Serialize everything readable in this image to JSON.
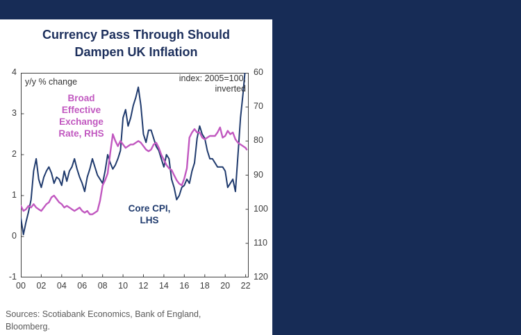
{
  "page": {
    "band_color": "#172c56",
    "panel_color": "#ffffff"
  },
  "title": {
    "line1": "Currency Pass Through Should",
    "line2": "Dampen UK Inflation"
  },
  "annotations": {
    "left_axis_note": "y/y % change",
    "right_axis_note_line1": "index: 2005=100,",
    "right_axis_note_line2": "inverted",
    "fx_label_lines": [
      "Broad",
      "Effective",
      "Exchange",
      "Rate, RHS"
    ],
    "cpi_label_line1": "Core CPI,",
    "cpi_label_line2": "LHS"
  },
  "footer": {
    "line1": "Sources: Scotiabank Economics, Bank of England,",
    "line2": "Bloomberg."
  },
  "chart_data": {
    "type": "line",
    "title": "Currency Pass Through Should Dampen UK Inflation",
    "x_axis": {
      "range": [
        2000,
        2022.3
      ],
      "tick_years": [
        2000,
        2002,
        2004,
        2006,
        2008,
        2010,
        2012,
        2014,
        2016,
        2018,
        2020,
        2022
      ],
      "tick_labels": [
        "00",
        "02",
        "04",
        "06",
        "08",
        "10",
        "12",
        "14",
        "16",
        "18",
        "20",
        "22"
      ]
    },
    "left_axis": {
      "label": "y/y % change",
      "range": [
        -1,
        4
      ],
      "ticks": [
        4,
        3,
        2,
        1,
        0,
        -1
      ]
    },
    "right_axis": {
      "label": "index: 2005=100, inverted",
      "range": [
        60,
        120
      ],
      "ticks": [
        60,
        70,
        80,
        90,
        100,
        110,
        120
      ],
      "inverted": true
    },
    "grid": false,
    "legend_position": "in-plot annotations",
    "series": [
      {
        "name": "Core CPI, LHS",
        "axis": "left",
        "color": "#1f3a6d",
        "points": [
          [
            2000,
            0.45
          ],
          [
            2000.25,
            0.05
          ],
          [
            2000.5,
            0.35
          ],
          [
            2000.75,
            0.6
          ],
          [
            2001,
            0.9
          ],
          [
            2001.25,
            1.6
          ],
          [
            2001.5,
            1.9
          ],
          [
            2001.75,
            1.4
          ],
          [
            2002,
            1.2
          ],
          [
            2002.25,
            1.45
          ],
          [
            2002.5,
            1.6
          ],
          [
            2002.75,
            1.7
          ],
          [
            2003,
            1.55
          ],
          [
            2003.25,
            1.3
          ],
          [
            2003.5,
            1.45
          ],
          [
            2003.75,
            1.4
          ],
          [
            2004,
            1.25
          ],
          [
            2004.25,
            1.6
          ],
          [
            2004.5,
            1.35
          ],
          [
            2004.75,
            1.6
          ],
          [
            2005,
            1.7
          ],
          [
            2005.25,
            1.9
          ],
          [
            2005.5,
            1.65
          ],
          [
            2005.75,
            1.45
          ],
          [
            2006,
            1.3
          ],
          [
            2006.25,
            1.1
          ],
          [
            2006.5,
            1.45
          ],
          [
            2006.75,
            1.65
          ],
          [
            2007,
            1.9
          ],
          [
            2007.25,
            1.7
          ],
          [
            2007.5,
            1.5
          ],
          [
            2007.75,
            1.4
          ],
          [
            2008,
            1.3
          ],
          [
            2008.25,
            1.6
          ],
          [
            2008.5,
            2.0
          ],
          [
            2008.75,
            1.8
          ],
          [
            2009,
            1.65
          ],
          [
            2009.25,
            1.75
          ],
          [
            2009.5,
            1.9
          ],
          [
            2009.75,
            2.1
          ],
          [
            2010,
            2.9
          ],
          [
            2010.25,
            3.1
          ],
          [
            2010.5,
            2.7
          ],
          [
            2010.75,
            2.9
          ],
          [
            2011,
            3.2
          ],
          [
            2011.25,
            3.4
          ],
          [
            2011.5,
            3.65
          ],
          [
            2011.75,
            3.2
          ],
          [
            2012,
            2.5
          ],
          [
            2012.25,
            2.3
          ],
          [
            2012.5,
            2.6
          ],
          [
            2012.75,
            2.6
          ],
          [
            2013,
            2.4
          ],
          [
            2013.25,
            2.2
          ],
          [
            2013.5,
            2.1
          ],
          [
            2013.75,
            1.9
          ],
          [
            2014,
            1.7
          ],
          [
            2014.25,
            2.0
          ],
          [
            2014.5,
            1.9
          ],
          [
            2014.75,
            1.4
          ],
          [
            2015,
            1.2
          ],
          [
            2015.25,
            0.9
          ],
          [
            2015.5,
            1.0
          ],
          [
            2015.75,
            1.2
          ],
          [
            2016,
            1.25
          ],
          [
            2016.25,
            1.4
          ],
          [
            2016.5,
            1.3
          ],
          [
            2016.75,
            1.6
          ],
          [
            2017,
            1.8
          ],
          [
            2017.25,
            2.4
          ],
          [
            2017.5,
            2.7
          ],
          [
            2017.75,
            2.5
          ],
          [
            2018,
            2.4
          ],
          [
            2018.25,
            2.1
          ],
          [
            2018.5,
            1.9
          ],
          [
            2018.75,
            1.9
          ],
          [
            2019,
            1.8
          ],
          [
            2019.25,
            1.7
          ],
          [
            2019.5,
            1.7
          ],
          [
            2019.75,
            1.7
          ],
          [
            2020,
            1.6
          ],
          [
            2020.25,
            1.2
          ],
          [
            2020.5,
            1.3
          ],
          [
            2020.75,
            1.4
          ],
          [
            2021,
            1.1
          ],
          [
            2021.25,
            2.0
          ],
          [
            2021.5,
            2.9
          ],
          [
            2021.75,
            3.5
          ],
          [
            2022,
            4.2
          ]
        ]
      },
      {
        "name": "Broad Effective Exchange Rate, RHS",
        "axis": "right",
        "color": "#c158c0",
        "points": [
          [
            2000,
            99
          ],
          [
            2000.25,
            100.5
          ],
          [
            2000.5,
            100
          ],
          [
            2000.75,
            99
          ],
          [
            2001,
            99.5
          ],
          [
            2001.25,
            98.5
          ],
          [
            2001.5,
            99.5
          ],
          [
            2001.75,
            100
          ],
          [
            2002,
            100.5
          ],
          [
            2002.25,
            99.5
          ],
          [
            2002.5,
            98.5
          ],
          [
            2002.75,
            98
          ],
          [
            2003,
            96.5
          ],
          [
            2003.25,
            96
          ],
          [
            2003.5,
            97
          ],
          [
            2003.75,
            98
          ],
          [
            2004,
            98.5
          ],
          [
            2004.25,
            99.5
          ],
          [
            2004.5,
            99
          ],
          [
            2004.75,
            99.5
          ],
          [
            2005,
            100
          ],
          [
            2005.25,
            100.5
          ],
          [
            2005.5,
            100
          ],
          [
            2005.75,
            99.5
          ],
          [
            2006,
            100.5
          ],
          [
            2006.25,
            101
          ],
          [
            2006.5,
            100.5
          ],
          [
            2006.75,
            101.5
          ],
          [
            2007,
            101.5
          ],
          [
            2007.25,
            101
          ],
          [
            2007.5,
            100.5
          ],
          [
            2007.75,
            97.5
          ],
          [
            2008,
            93
          ],
          [
            2008.25,
            91.5
          ],
          [
            2008.5,
            89.5
          ],
          [
            2008.75,
            83.5
          ],
          [
            2009,
            78
          ],
          [
            2009.25,
            80
          ],
          [
            2009.5,
            81.5
          ],
          [
            2009.75,
            80
          ],
          [
            2010,
            81
          ],
          [
            2010.25,
            82
          ],
          [
            2010.5,
            81.5
          ],
          [
            2010.75,
            81
          ],
          [
            2011,
            81
          ],
          [
            2011.25,
            80.5
          ],
          [
            2011.5,
            80
          ],
          [
            2011.75,
            80.5
          ],
          [
            2012,
            81.5
          ],
          [
            2012.25,
            82.5
          ],
          [
            2012.5,
            83
          ],
          [
            2012.75,
            82.5
          ],
          [
            2013,
            81
          ],
          [
            2013.25,
            80.5
          ],
          [
            2013.5,
            82
          ],
          [
            2013.75,
            84
          ],
          [
            2014,
            85.5
          ],
          [
            2014.25,
            87
          ],
          [
            2014.5,
            88
          ],
          [
            2014.75,
            88.5
          ],
          [
            2015,
            90
          ],
          [
            2015.25,
            91.5
          ],
          [
            2015.5,
            92.5
          ],
          [
            2015.75,
            93
          ],
          [
            2016,
            91
          ],
          [
            2016.25,
            88
          ],
          [
            2016.5,
            79
          ],
          [
            2016.75,
            77.5
          ],
          [
            2017,
            76.5
          ],
          [
            2017.25,
            77.5
          ],
          [
            2017.5,
            77.5
          ],
          [
            2017.75,
            79
          ],
          [
            2018,
            79.5
          ],
          [
            2018.25,
            79
          ],
          [
            2018.5,
            78.5
          ],
          [
            2018.75,
            78.5
          ],
          [
            2019,
            78.5
          ],
          [
            2019.25,
            77.5
          ],
          [
            2019.5,
            76
          ],
          [
            2019.75,
            79
          ],
          [
            2020,
            78.5
          ],
          [
            2020.25,
            77
          ],
          [
            2020.5,
            78
          ],
          [
            2020.75,
            77.5
          ],
          [
            2021,
            79.5
          ],
          [
            2021.25,
            80.5
          ],
          [
            2021.5,
            81
          ],
          [
            2021.75,
            81.5
          ],
          [
            2022,
            82
          ],
          [
            2022.1,
            82.5
          ]
        ]
      }
    ]
  }
}
